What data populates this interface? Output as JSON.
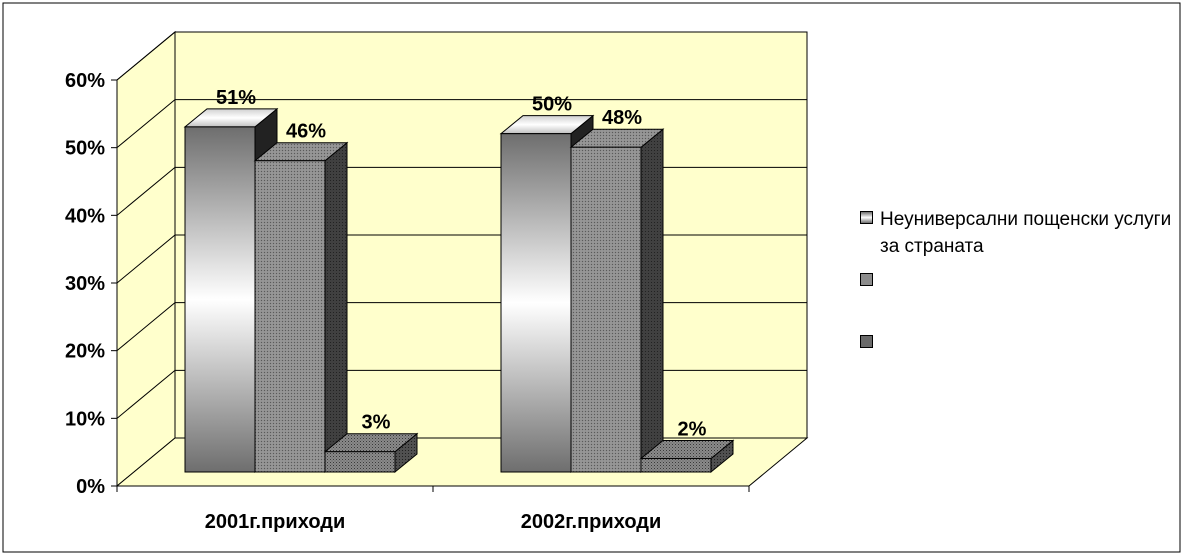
{
  "chart_data": {
    "type": "bar",
    "categories": [
      "2001г.приходи",
      "2002г.приходи"
    ],
    "series": [
      {
        "name": "Неуниверсални пощенски услуги за страната",
        "values": [
          51,
          50
        ],
        "labels": [
          "51%",
          "50%"
        ]
      },
      {
        "name": "",
        "values": [
          46,
          48
        ],
        "labels": [
          "46%",
          "48%"
        ]
      },
      {
        "name": "",
        "values": [
          3,
          2
        ],
        "labels": [
          "3%",
          "2%"
        ]
      }
    ],
    "yticks": [
      "0%",
      "10%",
      "20%",
      "30%",
      "40%",
      "50%",
      "60%"
    ],
    "ylim": [
      0,
      60
    ],
    "grid": true,
    "legend_position": "right",
    "colors": {
      "wall": "#FFFFCC",
      "floor": "#FFFFCC",
      "series1_light": "#FFFFFF",
      "series1_dark": "#6E6E6E",
      "series2": "#8C8C8C",
      "series3": "#7A7A7A"
    }
  }
}
